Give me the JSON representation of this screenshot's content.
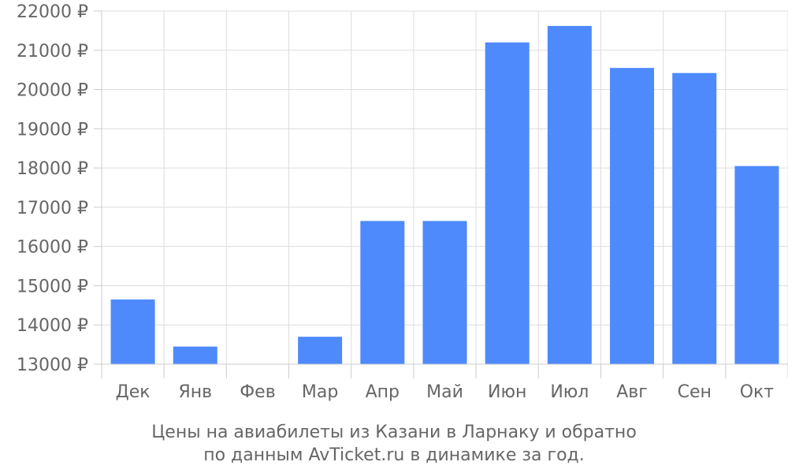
{
  "chart_data": {
    "type": "bar",
    "categories": [
      "Дек",
      "Янв",
      "Фев",
      "Мар",
      "Апр",
      "Май",
      "Июн",
      "Июл",
      "Авг",
      "Сен",
      "Окт"
    ],
    "values": [
      14650,
      13450,
      null,
      13700,
      16650,
      16650,
      21200,
      21620,
      20550,
      20420,
      18050
    ],
    "ylim": [
      13000,
      22000
    ],
    "yticks": [
      13000,
      14000,
      15000,
      16000,
      17000,
      18000,
      19000,
      20000,
      21000,
      22000
    ],
    "ytick_labels": [
      "13000 ₽",
      "14000 ₽",
      "15000 ₽",
      "16000 ₽",
      "17000 ₽",
      "18000 ₽",
      "19000 ₽",
      "20000 ₽",
      "21000 ₽",
      "22000 ₽"
    ],
    "grid": true,
    "bar_color": "#4e8afc",
    "caption": [
      "Цены на авиабилеты из Казани в Ларнаку и обратно",
      "по данным AvTicket.ru в динамике за год."
    ]
  }
}
